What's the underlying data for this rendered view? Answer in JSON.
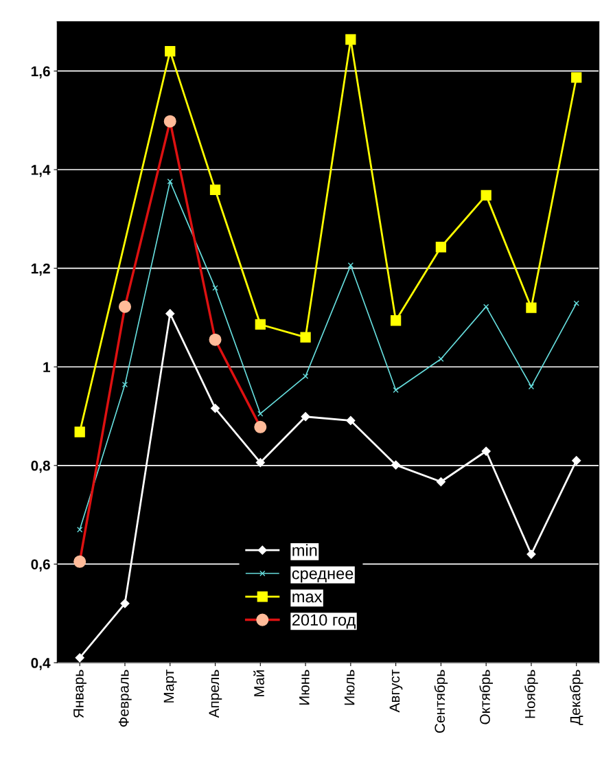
{
  "chart_data": {
    "type": "line",
    "categories": [
      "Январь",
      "Февраль",
      "Март",
      "Апрель",
      "Май",
      "Июнь",
      "Июль",
      "Август",
      "Сентябрь",
      "Октябрь",
      "Ноябрь",
      "Декабрь"
    ],
    "series": [
      {
        "name": "min",
        "color": "#ffffff",
        "marker": "diamond",
        "values": [
          0.41,
          0.52,
          1.108,
          0.916,
          0.806,
          0.899,
          0.891,
          0.801,
          0.767,
          0.829,
          0.62,
          0.81
        ]
      },
      {
        "name": "среднее",
        "color": "#66dddd",
        "marker": "cross",
        "values": [
          0.67,
          0.964,
          1.376,
          1.16,
          0.905,
          0.981,
          1.206,
          0.953,
          1.016,
          1.122,
          0.96,
          1.129
        ]
      },
      {
        "name": "max",
        "color": "#ffff00",
        "marker": "square",
        "values": [
          0.868,
          null,
          1.64,
          1.359,
          1.086,
          1.06,
          1.664,
          1.094,
          1.243,
          1.348,
          1.12,
          1.587
        ]
      },
      {
        "name": "2010 год",
        "color": "#dd1111",
        "marker": "circle",
        "values": [
          0.605,
          1.122,
          1.498,
          1.055,
          0.878,
          null,
          null,
          null,
          null,
          null,
          null,
          null
        ]
      }
    ],
    "ylim": [
      0.4,
      1.7
    ],
    "yticks": [
      {
        "value": 0.4,
        "label": "0,4"
      },
      {
        "value": 0.6,
        "label": "0,6"
      },
      {
        "value": 0.8,
        "label": "0,8"
      },
      1,
      {
        "value": 1.2,
        "label": "1,2"
      },
      {
        "value": 1.4,
        "label": "1,4"
      },
      {
        "value": 1.6,
        "label": "1,6"
      }
    ],
    "grid": "y",
    "legend": "bottom",
    "line_style": "solid"
  }
}
